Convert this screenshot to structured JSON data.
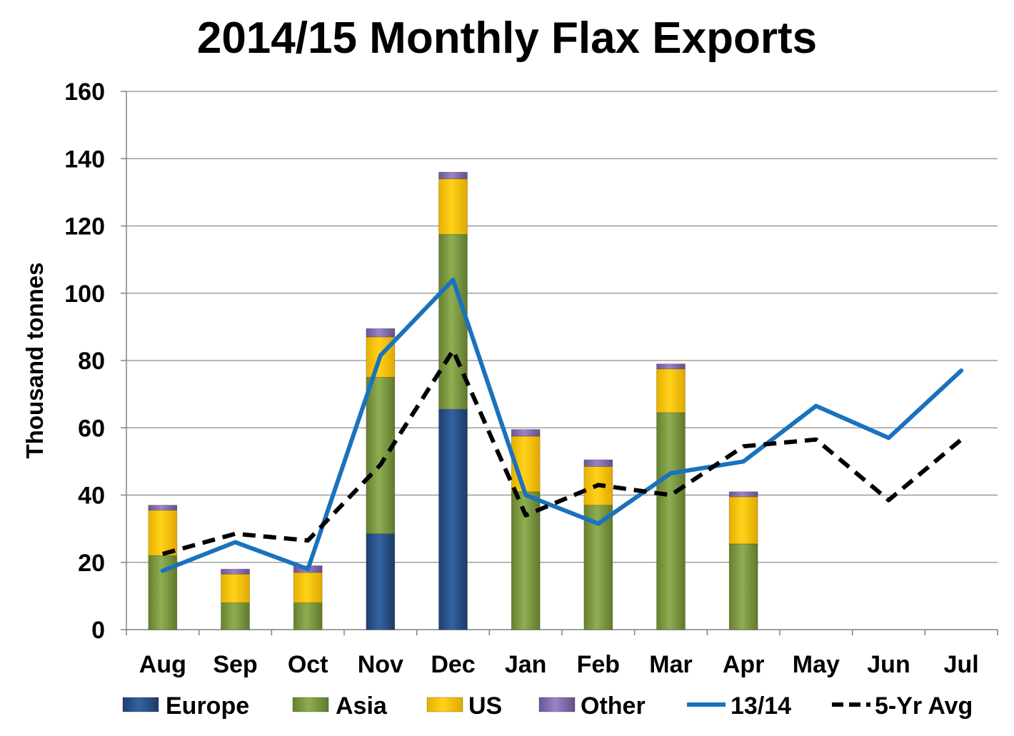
{
  "chart_data": {
    "type": "bar",
    "title": "2014/15 Monthly Flax Exports",
    "ylabel": "Thousand tonnes",
    "xlabel": "",
    "ylim": [
      0,
      160
    ],
    "yticks": [
      0,
      20,
      40,
      60,
      80,
      100,
      120,
      140,
      160
    ],
    "grid": true,
    "legend_position": "bottom",
    "categories": [
      "Aug",
      "Sep",
      "Oct",
      "Nov",
      "Dec",
      "Jan",
      "Feb",
      "Mar",
      "Apr",
      "May",
      "Jun",
      "Jul"
    ],
    "series": [
      {
        "name": "Europe",
        "kind": "stacked-bar",
        "color": "#2B5590",
        "values": [
          0,
          0,
          0,
          28.5,
          65.5,
          0,
          0,
          0,
          0,
          null,
          null,
          null
        ]
      },
      {
        "name": "Asia",
        "kind": "stacked-bar",
        "color": "#7E9B45",
        "values": [
          22,
          8,
          8,
          46.5,
          52,
          41,
          37,
          64.5,
          25.5,
          null,
          null,
          null
        ]
      },
      {
        "name": "US",
        "kind": "stacked-bar",
        "color": "#FFC800",
        "values": [
          13.5,
          8.5,
          9,
          12,
          16.5,
          16.5,
          11.5,
          13,
          14,
          null,
          null,
          null
        ]
      },
      {
        "name": "Other",
        "kind": "stacked-bar",
        "color": "#8A72B3",
        "values": [
          1.5,
          1.5,
          2,
          2.5,
          2,
          2,
          2,
          1.5,
          1.5,
          null,
          null,
          null
        ]
      },
      {
        "name": "13/14",
        "kind": "line",
        "color": "#1A72BE",
        "values": [
          17.5,
          26,
          18,
          81.5,
          104,
          40,
          31.5,
          46.5,
          50,
          66.5,
          57,
          77
        ]
      },
      {
        "name": "5-Yr Avg",
        "kind": "dashed-line",
        "color": "#000000",
        "values": [
          22.5,
          28.5,
          26.5,
          49,
          83,
          34,
          43,
          40,
          54.5,
          56.5,
          38.5,
          56.5
        ]
      }
    ]
  }
}
